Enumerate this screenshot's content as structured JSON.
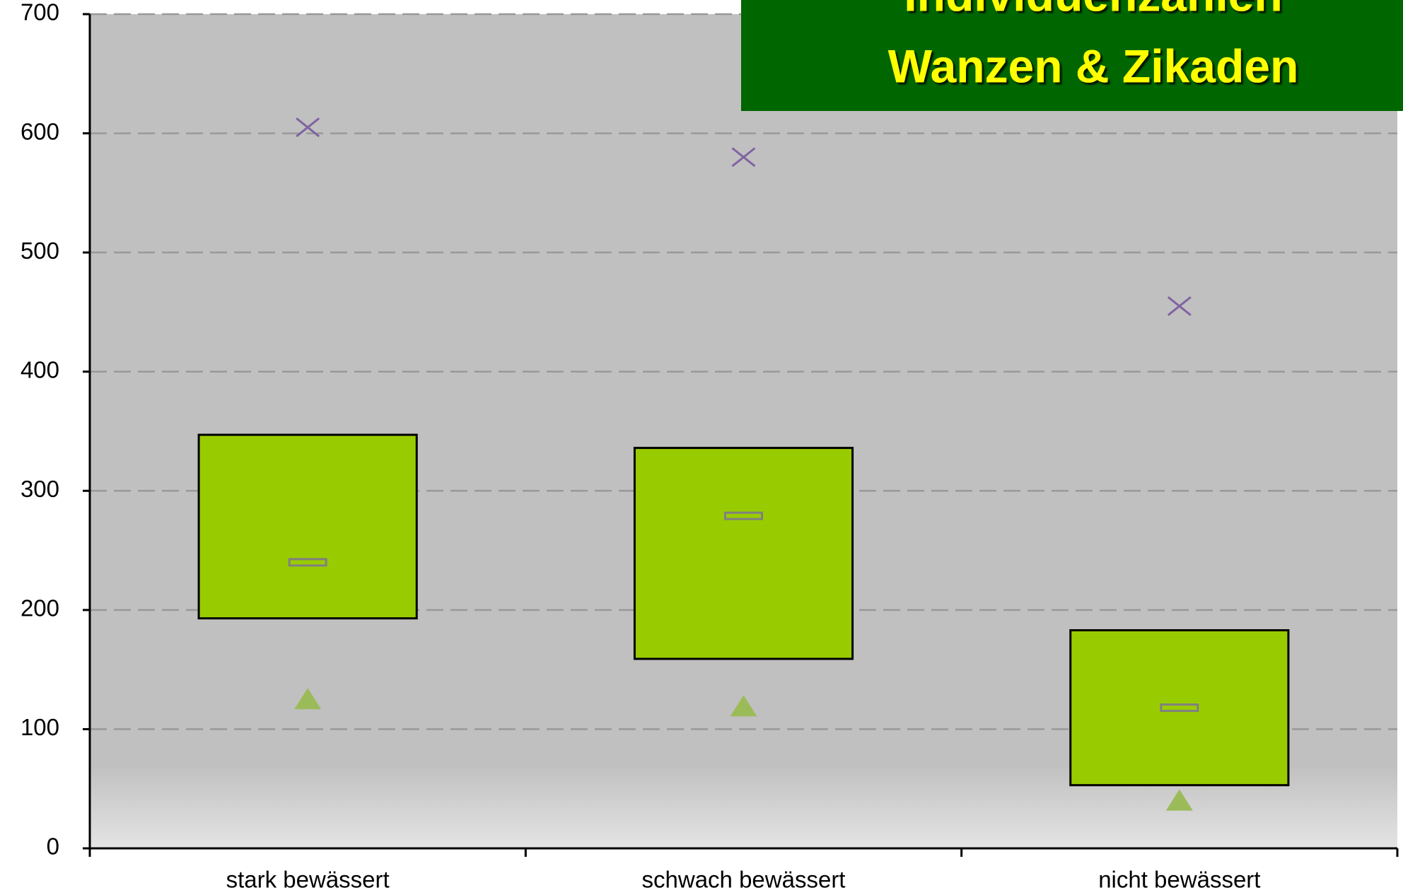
{
  "chart_data": {
    "type": "box",
    "title": [
      "Individuenzahlen",
      "Wanzen & Zikaden"
    ],
    "categories": [
      "stark bewässert",
      "schwach bewässert",
      "nicht bewässert"
    ],
    "q1": [
      193,
      159,
      53
    ],
    "q3": [
      347,
      336,
      183
    ],
    "median": [
      240,
      279,
      118
    ],
    "max": [
      605,
      580,
      455
    ],
    "min": [
      125,
      119,
      40
    ],
    "colors": {
      "box": "#99cc00",
      "median": "#808080",
      "max": "#8064a2",
      "min": "#9bbb59"
    },
    "ylim": [
      0,
      700
    ],
    "yticks": [
      0,
      100,
      200,
      300,
      400,
      500,
      600,
      700
    ],
    "grid": true
  }
}
